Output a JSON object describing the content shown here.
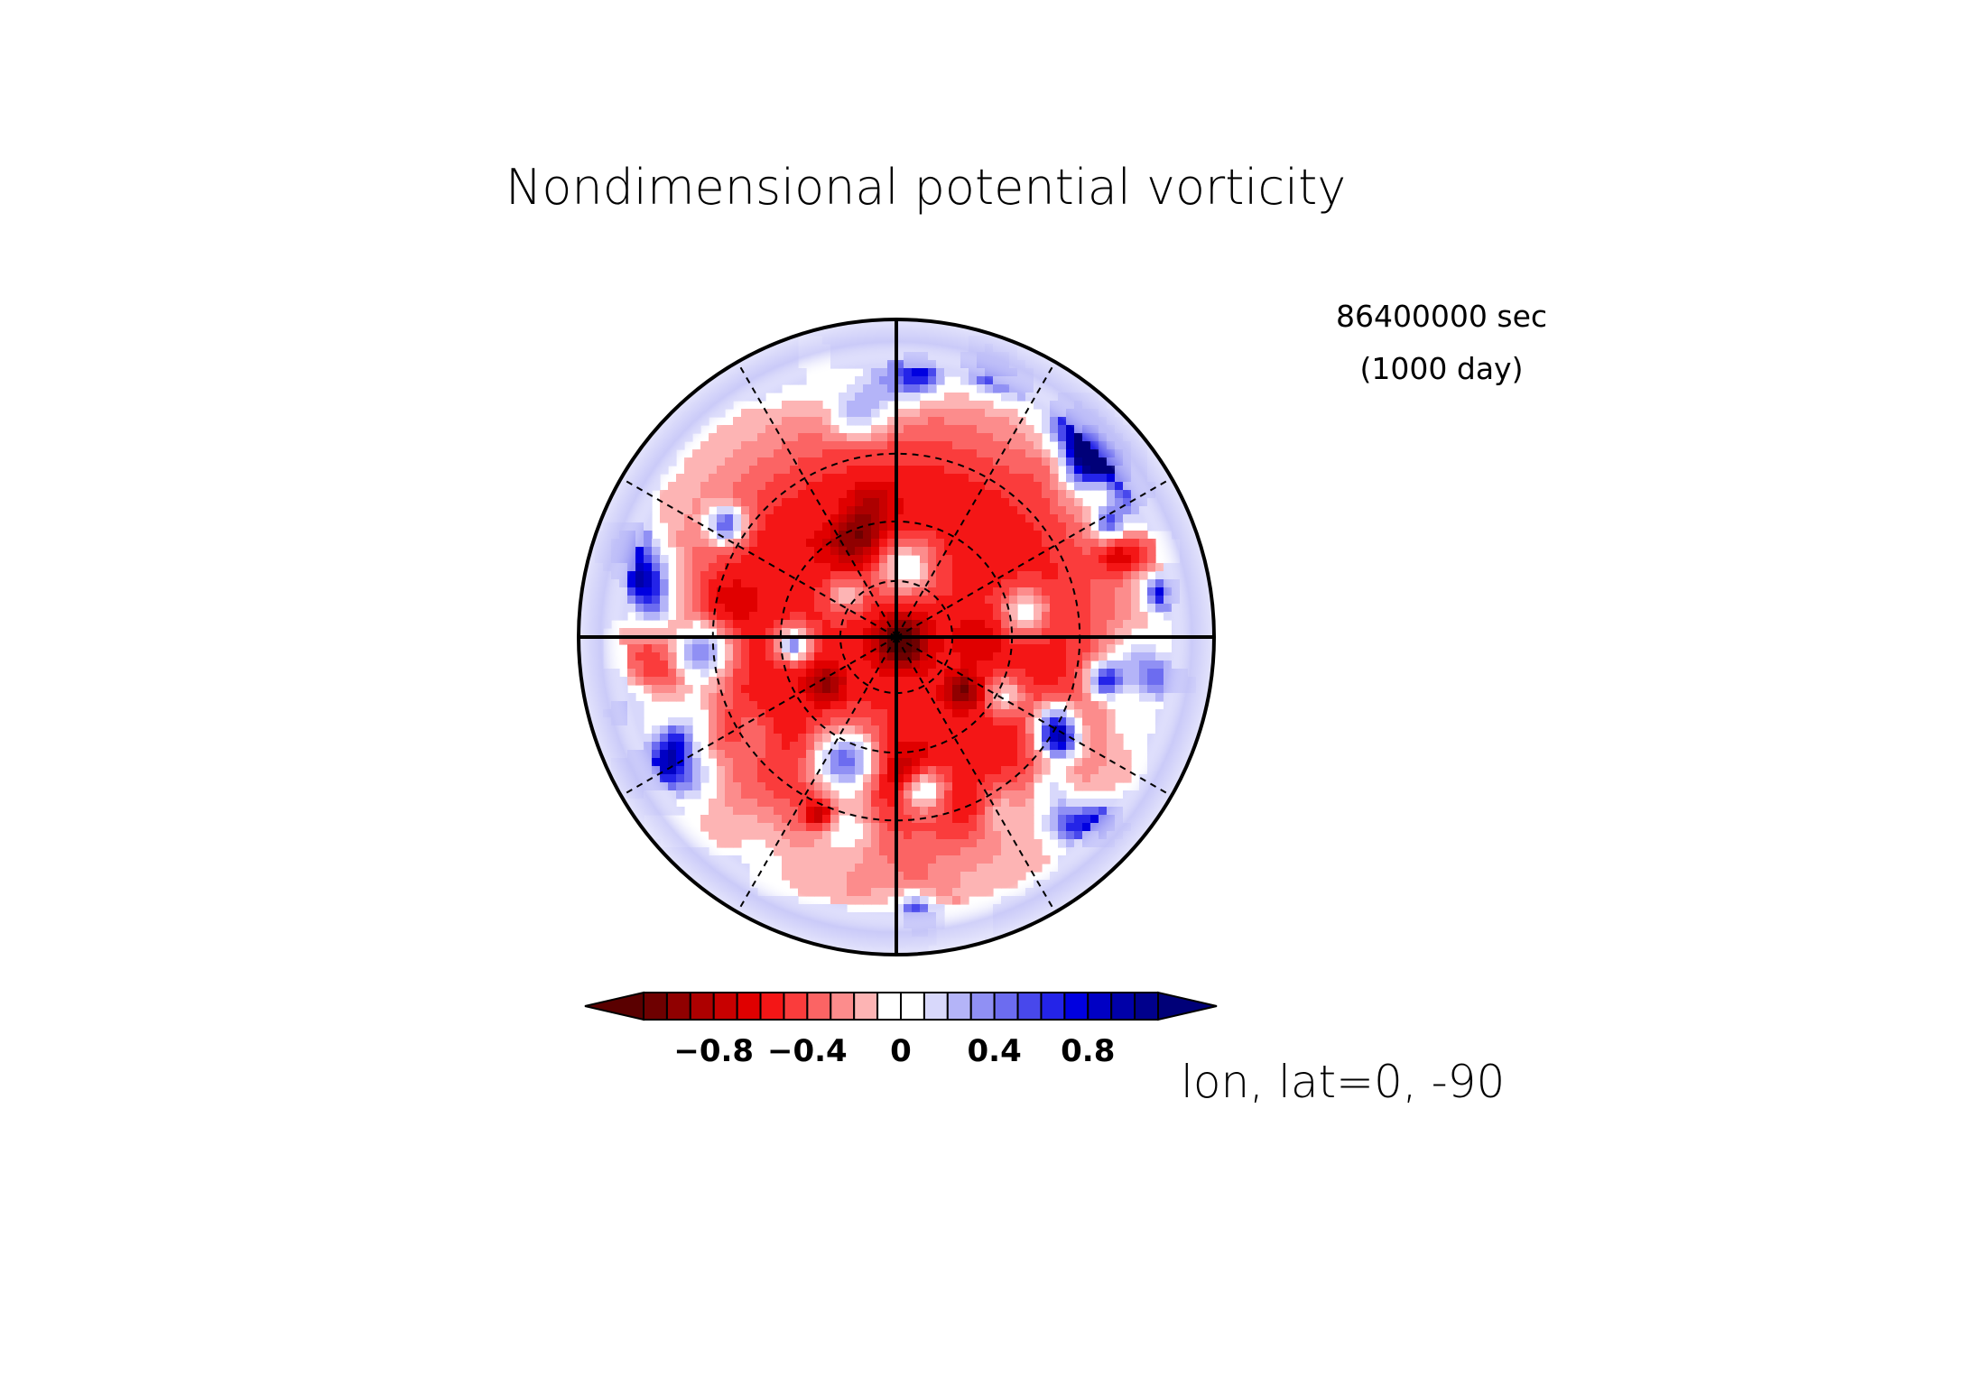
{
  "chart_data": {
    "type": "heatmap",
    "title": "Nondimensional potential vorticity",
    "time_label": "86400000 sec",
    "time_label_days": "(1000 day)",
    "projection_label": "lon, lat=0, -90",
    "projection": "polar-stereographic",
    "pole_latitude": -90,
    "center_longitude": 0,
    "colorbar": {
      "orientation": "horizontal",
      "placement": "below-map",
      "extend": "both",
      "levels": [
        -1.1,
        -1.0,
        -0.9,
        -0.8,
        -0.7,
        -0.6,
        -0.5,
        -0.4,
        -0.3,
        -0.2,
        -0.1,
        0,
        0.1,
        0.2,
        0.3,
        0.4,
        0.5,
        0.6,
        0.7,
        0.8,
        0.9,
        1.0,
        1.1
      ],
      "tick_values": [
        -0.8,
        -0.4,
        0,
        0.4,
        0.8
      ],
      "tick_labels": [
        "−0.8",
        "−0.4",
        "0",
        "0.4",
        "0.8"
      ],
      "colors": [
        "#6e0000",
        "#900000",
        "#ad0000",
        "#c80000",
        "#e00000",
        "#f41616",
        "#fa3c3c",
        "#fb6464",
        "#fc8c8c",
        "#fdb4b4",
        "#ffffff",
        "#ffffff",
        "#d8d8fb",
        "#b4b4f8",
        "#9090f4",
        "#6c6cf0",
        "#4848ec",
        "#2424e8",
        "#0000e0",
        "#0000c4",
        "#0000a8",
        "#00008c"
      ],
      "under_color": "#5a0000",
      "over_color": "#000078"
    },
    "grid": {
      "latitude_circles": [
        -30,
        -50,
        -70
      ],
      "meridian_spacing_deg": 30,
      "solid_meridians_deg": [
        0,
        90,
        180,
        270
      ]
    }
  }
}
